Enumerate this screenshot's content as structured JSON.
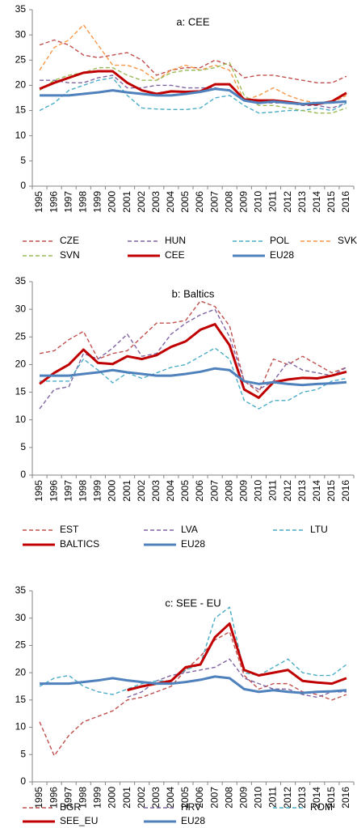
{
  "chart_data": [
    {
      "type": "line",
      "title": "a: CEE",
      "categories": [
        "1995",
        "1996",
        "1997",
        "1998",
        "1999",
        "2000",
        "2001",
        "2002",
        "2003",
        "2004",
        "2005",
        "2006",
        "2007",
        "2008",
        "2009",
        "2010",
        "2011",
        "2012",
        "2013",
        "2014",
        "2015",
        "2016"
      ],
      "ylim": [
        0,
        35
      ],
      "yticks": [
        0,
        5,
        10,
        15,
        20,
        25,
        30,
        35
      ],
      "series": [
        {
          "name": "CZE",
          "color": "#c0504d",
          "dash": true,
          "values": [
            28,
            29,
            28,
            26,
            25.5,
            26,
            26.5,
            25,
            22,
            23,
            23.5,
            23.5,
            25,
            24,
            21.5,
            22,
            22,
            21.5,
            21,
            20.5,
            20.5,
            21.8
          ]
        },
        {
          "name": "HUN",
          "color": "#8064a2",
          "dash": true,
          "values": [
            21,
            21,
            20.5,
            20.5,
            21.5,
            22,
            19.5,
            19.5,
            20,
            20,
            19.5,
            19.5,
            19.5,
            19,
            17,
            16.5,
            16.5,
            16.5,
            16,
            16,
            15.5,
            16.5
          ]
        },
        {
          "name": "POL",
          "color": "#4bacc6",
          "dash": true,
          "values": [
            15,
            16.5,
            19,
            20,
            21,
            21.5,
            18,
            15.5,
            15.3,
            15.2,
            15.2,
            15.5,
            17.5,
            18,
            16,
            14.5,
            14.7,
            15,
            15,
            15.5,
            15,
            16.5
          ]
        },
        {
          "name": "SVK",
          "color": "#f79646",
          "dash": true,
          "values": [
            23,
            27.5,
            29,
            32,
            28,
            24,
            24,
            23,
            21,
            23,
            24,
            23,
            24,
            23,
            17,
            18,
            19.5,
            18,
            17,
            16.5,
            16.5,
            18
          ]
        },
        {
          "name": "SVN",
          "color": "#9bbb59",
          "dash": true,
          "values": [
            19,
            21,
            22,
            22.5,
            23.5,
            23.5,
            22,
            21,
            21,
            22.5,
            23,
            23,
            23.5,
            24.5,
            18,
            16,
            16,
            15.5,
            15,
            14.5,
            14.5,
            15.5
          ]
        },
        {
          "name": "CEE",
          "color": "#c00000",
          "dash": false,
          "values": [
            19.3,
            20.5,
            21.5,
            22.5,
            22.8,
            22.8,
            20.5,
            19,
            18.3,
            18.8,
            18.7,
            18.8,
            20.2,
            20.2,
            17.2,
            17,
            17,
            16.7,
            16.3,
            16.3,
            16.8,
            18.5
          ]
        },
        {
          "name": "EU28",
          "color": "#4f81bd",
          "dash": false,
          "values": [
            18,
            18,
            18,
            18.3,
            18.6,
            19,
            18.6,
            18.3,
            18,
            18,
            18.3,
            18.7,
            19.3,
            19,
            17,
            16.5,
            16.8,
            16.5,
            16.3,
            16.5,
            16.6,
            16.8
          ]
        }
      ]
    },
    {
      "type": "line",
      "title": "b: Baltics",
      "categories": [
        "1995",
        "1996",
        "1997",
        "1998",
        "1999",
        "2000",
        "2001",
        "2002",
        "2003",
        "2004",
        "2005",
        "2006",
        "2007",
        "2008",
        "2009",
        "2010",
        "2011",
        "2012",
        "2013",
        "2014",
        "2015",
        "2016"
      ],
      "ylim": [
        0,
        35
      ],
      "yticks": [
        0,
        5,
        10,
        15,
        20,
        25,
        30,
        35
      ],
      "series": [
        {
          "name": "EST",
          "color": "#c0504d",
          "dash": true,
          "values": [
            22,
            22.5,
            24.5,
            26,
            21,
            22,
            22.5,
            25,
            27.5,
            27.5,
            28,
            31.5,
            30.5,
            27,
            17,
            15,
            21,
            20,
            21.5,
            20,
            18.5,
            19.5
          ]
        },
        {
          "name": "LVA",
          "color": "#8064a2",
          "dash": true,
          "values": [
            12,
            15.5,
            16,
            22,
            21,
            23,
            25.5,
            21.5,
            22,
            25.5,
            27.5,
            29,
            30,
            25,
            17,
            15.5,
            17,
            20.5,
            19,
            18.5,
            18,
            19.5
          ]
        },
        {
          "name": "LTU",
          "color": "#4bacc6",
          "dash": true,
          "values": [
            17,
            17,
            17,
            21,
            19,
            16.7,
            18.5,
            17.5,
            18.5,
            19.5,
            20,
            21.5,
            23,
            21,
            13.5,
            12,
            13.5,
            13.5,
            15,
            15.5,
            17,
            17.5
          ]
        },
        {
          "name": "BALTICS",
          "color": "#c00000",
          "dash": false,
          "values": [
            16.5,
            18.5,
            20,
            22.7,
            20.3,
            20.1,
            21.5,
            21,
            21.7,
            23.2,
            24.2,
            26.3,
            27.3,
            23.5,
            15.5,
            14,
            16.8,
            17.3,
            17.6,
            17.5,
            18,
            18.7
          ]
        },
        {
          "name": "EU28",
          "color": "#4f81bd",
          "dash": false,
          "values": [
            18,
            18,
            18,
            18.3,
            18.6,
            19,
            18.6,
            18.3,
            18,
            18,
            18.3,
            18.7,
            19.3,
            19,
            17,
            16.5,
            16.8,
            16.5,
            16.3,
            16.5,
            16.6,
            16.8
          ]
        }
      ]
    },
    {
      "type": "line",
      "title": "c: SEE - EU",
      "categories": [
        "1995",
        "1996",
        "1997",
        "1998",
        "1999",
        "2000",
        "2001",
        "2002",
        "2003",
        "2004",
        "2005",
        "2006",
        "2007",
        "2008",
        "2009",
        "2010",
        "2011",
        "2012",
        "2013",
        "2014",
        "2015",
        "2016"
      ],
      "ylim": [
        0,
        35
      ],
      "yticks": [
        0,
        5,
        10,
        15,
        20,
        25,
        30,
        35
      ],
      "series": [
        {
          "name": "BGR",
          "color": "#c0504d",
          "dash": true,
          "values": [
            11,
            4.8,
            8.5,
            11,
            12,
            13,
            15,
            15.5,
            16.5,
            17.5,
            20.5,
            23,
            26,
            27.5,
            19.5,
            17,
            18,
            18,
            16.5,
            16,
            15,
            16
          ]
        },
        {
          "name": "HRV",
          "color": "#8064a2",
          "dash": true,
          "values": [
            null,
            null,
            null,
            null,
            null,
            null,
            15.5,
            16.5,
            18.5,
            19.5,
            20,
            20.5,
            21,
            22.5,
            19,
            18,
            17,
            17,
            16,
            15.5,
            16.5,
            16.5
          ]
        },
        {
          "name": "ROM",
          "color": "#4bacc6",
          "dash": true,
          "values": [
            17.5,
            19,
            19.5,
            17.5,
            16.5,
            16,
            17,
            18,
            18.5,
            18.5,
            20.5,
            21.5,
            30,
            32,
            20,
            19.5,
            21,
            22.5,
            20,
            19.5,
            19.5,
            21.5
          ]
        },
        {
          "name": "SEE_EU",
          "color": "#c00000",
          "dash": false,
          "values": [
            null,
            null,
            null,
            null,
            null,
            null,
            16.8,
            17.5,
            18,
            18.5,
            21,
            21.5,
            26.5,
            29,
            20.5,
            19.5,
            20,
            20.5,
            18.5,
            18.2,
            18,
            19
          ]
        },
        {
          "name": "EU28",
          "color": "#4f81bd",
          "dash": false,
          "values": [
            18,
            18,
            18,
            18.3,
            18.6,
            19,
            18.6,
            18.3,
            18,
            18,
            18.3,
            18.7,
            19.3,
            19,
            17,
            16.5,
            16.8,
            16.5,
            16.3,
            16.5,
            16.6,
            16.8
          ]
        }
      ]
    }
  ]
}
